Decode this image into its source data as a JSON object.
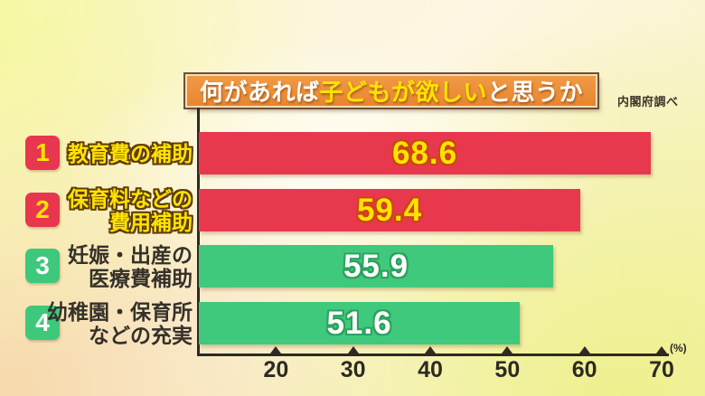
{
  "title": {
    "part1": "何があれば",
    "highlight": "子どもが欲しい",
    "part2": "と思うか"
  },
  "source_label": "内閣府調べ",
  "axis_unit": "(%)",
  "colors": {
    "bar_red": "#e8384e",
    "bar_green": "#3fc97c",
    "title_box_orange": "#ee8e38",
    "highlight_yellow": "#ffe300"
  },
  "chart_data": {
    "type": "bar",
    "orientation": "horizontal",
    "title": "何があれば子どもが欲しいと思うか",
    "source": "内閣府調べ",
    "unit": "%",
    "axis": {
      "min": 10,
      "max": 70,
      "ticks": [
        20,
        30,
        40,
        50,
        60,
        70
      ]
    },
    "legend": false,
    "items": [
      {
        "rank": "1",
        "label_lines": [
          "教育費の補助"
        ],
        "value": 68.6,
        "color": "red"
      },
      {
        "rank": "2",
        "label_lines": [
          "保育料などの",
          "費用補助"
        ],
        "value": 59.4,
        "color": "red"
      },
      {
        "rank": "3",
        "label_lines": [
          "妊娠・出産の",
          "医療費補助"
        ],
        "value": 55.9,
        "color": "green"
      },
      {
        "rank": "4",
        "label_lines": [
          "幼稚園・保育所",
          "などの充実"
        ],
        "value": 51.6,
        "color": "green"
      }
    ]
  }
}
